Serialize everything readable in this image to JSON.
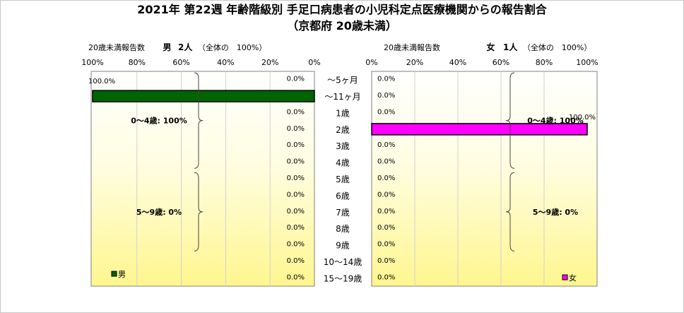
{
  "title_line1": "2021年 第22週 年齢階級別 手足口病患者の小児科定点医療機関からの報告割合",
  "title_line2": "（京都府 20歳未満）",
  "left_panel": {
    "header_label": "20歳未満報告数",
    "sex": "男",
    "count": "2人",
    "share": "（全体の　100%）",
    "legend": "男",
    "summary": [
      "0～4歳: 100%",
      "5～9歳: 0%"
    ]
  },
  "right_panel": {
    "header_label": "20歳未満報告数",
    "sex": "女",
    "count": "1人",
    "share": "（全体の　100%）",
    "legend": "女",
    "summary": [
      "0～4歳: 100%",
      "5～9歳: 0%"
    ]
  },
  "chart_data": {
    "type": "bar",
    "orientation": "horizontal",
    "categories": [
      "～5ヶ月",
      "～11ヶ月",
      "1歳",
      "2歳",
      "3歳",
      "4歳",
      "5歳",
      "6歳",
      "7歳",
      "8歳",
      "9歳",
      "10～14歳",
      "15～19歳"
    ],
    "series": [
      {
        "name": "男",
        "color": "#006400",
        "values": [
          0,
          100,
          0,
          0,
          0,
          0,
          0,
          0,
          0,
          0,
          0,
          0,
          0
        ],
        "labels": [
          "0.0%",
          "100.0%",
          "0.0%",
          "0.0%",
          "0.0%",
          "0.0%",
          "0.0%",
          "0.0%",
          "0.0%",
          "0.0%",
          "0.0%",
          "0.0%",
          "0.0%"
        ]
      },
      {
        "name": "女",
        "color": "#ff00ff",
        "values": [
          0,
          0,
          0,
          100,
          0,
          0,
          0,
          0,
          0,
          0,
          0,
          0,
          0
        ],
        "labels": [
          "0.0%",
          "0.0%",
          "0.0%",
          "100.0%",
          "0.0%",
          "0.0%",
          "0.0%",
          "0.0%",
          "0.0%",
          "0.0%",
          "0.0%",
          "0.0%",
          "0.0%"
        ]
      }
    ],
    "left_ticks": [
      "100%",
      "80%",
      "60%",
      "40%",
      "20%",
      "0%"
    ],
    "right_ticks": [
      "0%",
      "20%",
      "40%",
      "60%",
      "80%",
      "100%"
    ],
    "xlim": [
      0,
      100
    ],
    "grid": true,
    "background": "yellow gradient"
  }
}
